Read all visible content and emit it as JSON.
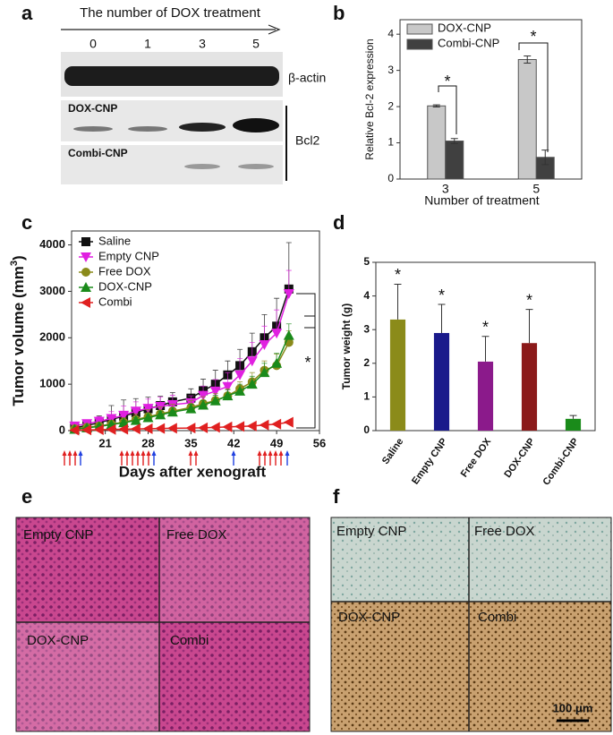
{
  "panel_labels": [
    "a",
    "b",
    "c",
    "d",
    "e",
    "f"
  ],
  "blot": {
    "title": "The number of DOX treatment",
    "lanes": [
      "0",
      "1",
      "3",
      "5"
    ],
    "loading": "β-actin",
    "sub": [
      "DOX-CNP",
      "Combi-CNP"
    ],
    "target": "Bcl2"
  },
  "chart_data": [
    {
      "type": "bar",
      "ylabel": "Relative Bcl-2 expression",
      "xlabel": "Number of treatment",
      "categories": [
        "3",
        "5"
      ],
      "series": [
        {
          "name": "DOX-CNP",
          "color": "#c8c8c8",
          "values": [
            2.02,
            3.3
          ],
          "errors": [
            0.03,
            0.1
          ]
        },
        {
          "name": "Combi-CNP",
          "color": "#404040",
          "values": [
            1.05,
            0.6
          ],
          "errors": [
            0.07,
            0.2
          ]
        }
      ],
      "ylim": [
        0,
        4.4
      ],
      "yticks": [
        0,
        1,
        2,
        3,
        4
      ],
      "legend": "upper left",
      "annotations": [
        "*",
        "*"
      ]
    },
    {
      "type": "line",
      "ylabel": [
        "Tumor volume (mm",
        "3",
        ")"
      ],
      "xlabel": "Days after xenograft",
      "x": [
        16,
        18,
        20,
        22,
        24,
        26,
        28,
        30,
        32,
        35,
        37,
        39,
        41,
        43,
        45,
        47,
        49,
        51
      ],
      "series": [
        {
          "name": "Saline",
          "color": "#111111",
          "marker": "square",
          "values": [
            60,
            110,
            170,
            240,
            310,
            390,
            470,
            540,
            620,
            700,
            860,
            1000,
            1200,
            1400,
            1700,
            2000,
            2250,
            3050
          ],
          "errors": [
            40,
            80,
            150,
            300,
            350,
            300,
            250,
            200,
            200,
            200,
            250,
            300,
            300,
            350,
            400,
            500,
            600,
            1000
          ]
        },
        {
          "name": "Empty CNP",
          "color": "#e020e0",
          "marker": "triangle-down",
          "values": [
            100,
            150,
            200,
            260,
            330,
            420,
            480,
            520,
            560,
            600,
            760,
            850,
            950,
            1200,
            1500,
            1850,
            2100,
            2950
          ],
          "errors": [
            30,
            60,
            100,
            150,
            200,
            200,
            200,
            200,
            200,
            150,
            200,
            250,
            300,
            350,
            400,
            400,
            500,
            500
          ]
        },
        {
          "name": "Free DOX",
          "color": "#8a8a1a",
          "marker": "circle",
          "values": [
            40,
            70,
            100,
            140,
            180,
            240,
            300,
            360,
            420,
            500,
            580,
            650,
            750,
            900,
            1050,
            1300,
            1400,
            1900
          ],
          "errors": [
            20,
            30,
            50,
            80,
            100,
            120,
            150,
            150,
            150,
            150,
            150,
            150,
            150,
            150,
            200,
            200,
            250,
            250
          ]
        },
        {
          "name": "DOX-CNP",
          "color": "#1a8a1a",
          "marker": "triangle-up",
          "values": [
            30,
            60,
            90,
            130,
            170,
            220,
            280,
            340,
            400,
            470,
            550,
            640,
            750,
            850,
            1000,
            1250,
            1450,
            2050
          ],
          "errors": [
            10,
            20,
            30,
            40,
            50,
            60,
            70,
            80,
            90,
            100,
            100,
            120,
            130,
            150,
            170,
            200,
            220,
            250
          ]
        },
        {
          "name": "Combi",
          "color": "#e02020",
          "marker": "triangle-left",
          "values": [
            10,
            15,
            20,
            25,
            30,
            35,
            40,
            45,
            50,
            55,
            60,
            70,
            80,
            90,
            100,
            120,
            140,
            180
          ],
          "errors": [
            5,
            5,
            5,
            5,
            5,
            5,
            10,
            10,
            10,
            10,
            10,
            10,
            10,
            15,
            15,
            15,
            20,
            20
          ]
        }
      ],
      "xlim": [
        15.5,
        56
      ],
      "xticks": [
        21,
        28,
        35,
        42,
        49,
        56
      ],
      "ylim": [
        0,
        4300
      ],
      "yticks": [
        0,
        1000,
        2000,
        3000,
        4000
      ],
      "legend": "upper left",
      "annotations": [
        "*"
      ]
    },
    {
      "type": "bar",
      "ylabel": "Tumor weight (g)",
      "categories": [
        "Saline",
        "Empty CNP",
        "Free DOX",
        "DOX-CNP",
        "Combi-CNP"
      ],
      "values": [
        3.3,
        2.9,
        2.05,
        2.6,
        0.35
      ],
      "errors": [
        1.05,
        0.85,
        0.75,
        1.0,
        0.1
      ],
      "colors": [
        "#8b8b1a",
        "#1a1a8b",
        "#8b1a8b",
        "#8b1a1a",
        "#1a8b1a"
      ],
      "ylim": [
        0,
        5
      ],
      "yticks": [
        0,
        1,
        2,
        3,
        4,
        5
      ],
      "annotations": [
        "*",
        "*",
        "*",
        "*"
      ]
    }
  ],
  "histology": {
    "e": [
      "Empty CNP",
      "Free DOX",
      "DOX-CNP",
      "Combi"
    ],
    "f": [
      "Empty CNP",
      "Free DOX",
      "DOX-CNP",
      "Combi"
    ],
    "scale_bar": "100 μm"
  }
}
